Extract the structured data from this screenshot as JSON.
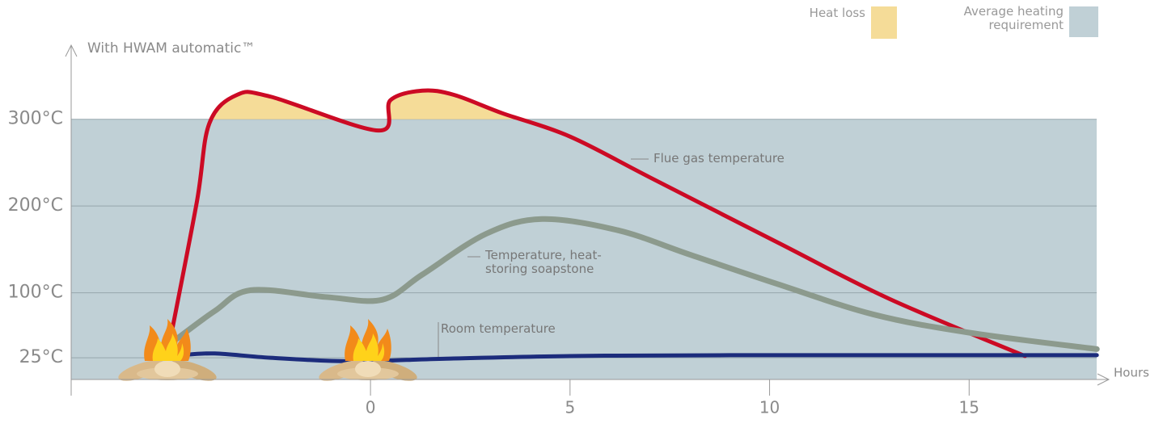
{
  "chart_data": {
    "type": "line",
    "y_label": "With HWAM automatic™",
    "x_label": "Hours",
    "xlim": [
      -7.5,
      18.5
    ],
    "ylim": [
      0,
      390
    ],
    "xticks": [
      0,
      5,
      10,
      15
    ],
    "yticks": [
      {
        "value": 25,
        "label": "25°C"
      },
      {
        "value": 100,
        "label": "100°C"
      },
      {
        "value": 200,
        "label": "200°C"
      },
      {
        "value": 300,
        "label": "300°C"
      }
    ],
    "grid": true,
    "heating_requirement": 300,
    "legend": [
      {
        "name": "Heat loss",
        "color": "#f5dc98"
      },
      {
        "name": "Average heating requirement",
        "color": "#c0d0d6"
      }
    ],
    "series": [
      {
        "name": "Flue gas temperature",
        "color": "#cc0a24",
        "x": [
          -5,
          -4.35,
          -4.04,
          -3.35,
          -2.5,
          0.2,
          0.5,
          1.3,
          2.1,
          3.3,
          5,
          7,
          10.2,
          13,
          16.4
        ],
        "values": [
          50,
          205,
          295,
          328,
          326,
          287,
          322,
          333,
          328,
          307,
          280,
          233,
          158,
          93,
          27
        ]
      },
      {
        "name": "Temperature, heat-storing soapstone",
        "color": "#8c9a8d",
        "x": [
          -4.85,
          -3.9,
          -3.0,
          -1.1,
          0.3,
          1.3,
          2.9,
          4.3,
          6.2,
          8,
          10.2,
          12.6,
          15,
          18.2
        ],
        "values": [
          47,
          79,
          103,
          95,
          92,
          121,
          168,
          185,
          172,
          144,
          110,
          75,
          54,
          35
        ]
      },
      {
        "name": "Room temperature",
        "color": "#1c2c7c",
        "x": [
          -4.75,
          -3.9,
          -2.5,
          -0.5,
          1.9,
          5,
          9,
          18.2
        ],
        "values": [
          28,
          30,
          25,
          21,
          24,
          27,
          28,
          28
        ]
      }
    ]
  }
}
